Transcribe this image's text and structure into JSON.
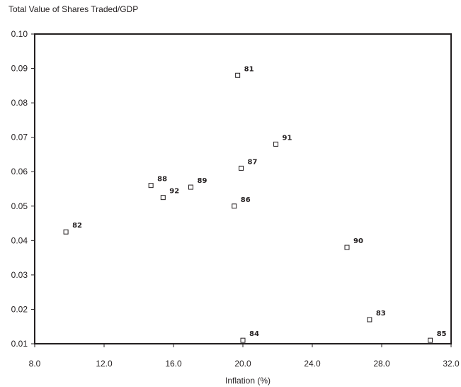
{
  "chart_data": {
    "type": "scatter",
    "title": "Total Value of Shares Traded/GDP",
    "xlabel": "Inflation (%)",
    "ylabel": "",
    "xlim": [
      8.0,
      32.0
    ],
    "ylim": [
      0.01,
      0.1
    ],
    "xticks": [
      "8.0",
      "12.0",
      "16.0",
      "20.0",
      "24.0",
      "28.0",
      "32.0"
    ],
    "yticks": [
      "0.01",
      "0.02",
      "0.03",
      "0.04",
      "0.05",
      "0.06",
      "0.07",
      "0.08",
      "0.09",
      "0.10"
    ],
    "grid": false,
    "marker": "open-square",
    "points": [
      {
        "label": "81",
        "x": 19.7,
        "y": 0.088
      },
      {
        "label": "91",
        "x": 21.9,
        "y": 0.068
      },
      {
        "label": "87",
        "x": 19.9,
        "y": 0.061
      },
      {
        "label": "88",
        "x": 14.7,
        "y": 0.056
      },
      {
        "label": "89",
        "x": 17.0,
        "y": 0.0555
      },
      {
        "label": "92",
        "x": 15.4,
        "y": 0.0525
      },
      {
        "label": "86",
        "x": 19.5,
        "y": 0.05
      },
      {
        "label": "82",
        "x": 9.8,
        "y": 0.0425
      },
      {
        "label": "90",
        "x": 26.0,
        "y": 0.038
      },
      {
        "label": "83",
        "x": 27.3,
        "y": 0.017
      },
      {
        "label": "84",
        "x": 20.0,
        "y": 0.011
      },
      {
        "label": "85",
        "x": 30.8,
        "y": 0.011
      }
    ]
  }
}
